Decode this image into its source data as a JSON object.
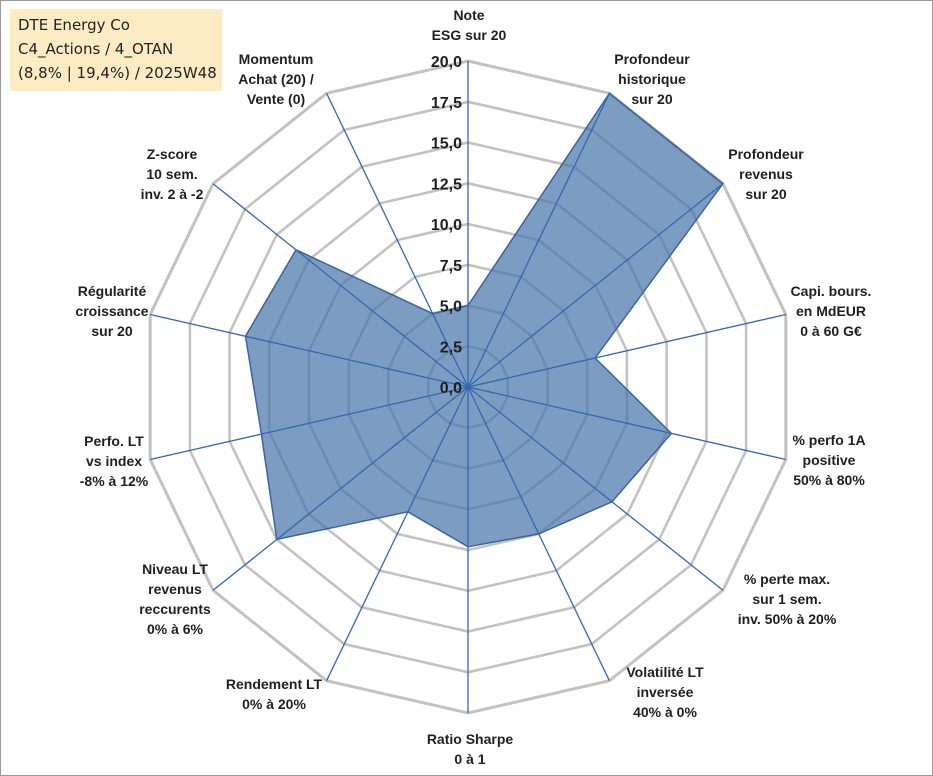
{
  "info": {
    "line1": "DTE Energy Co",
    "line2": "C4_Actions / 4_OTAN",
    "line3": "(8,8% | 19,4%) / 2025W48"
  },
  "chart_data": {
    "type": "radar",
    "title": "",
    "rmin": 0,
    "rmax": 20,
    "tick_step": 2.5,
    "tick_labels": [
      "0,0",
      "2,5",
      "5,0",
      "7,5",
      "10,0",
      "12,5",
      "15,0",
      "17,5",
      "20,0"
    ],
    "categories": [
      {
        "id": "note-esg",
        "label": [
          "Note",
          "ESG sur 20"
        ]
      },
      {
        "id": "profondeur-historique",
        "label": [
          "Profondeur",
          "historique",
          "sur 20"
        ]
      },
      {
        "id": "profondeur-revenus",
        "label": [
          "Profondeur",
          "revenus",
          "sur 20"
        ]
      },
      {
        "id": "capi-bours",
        "label": [
          "Capi. bours.",
          "en MdEUR",
          "0 à 60 G€"
        ]
      },
      {
        "id": "perfo-1a",
        "label": [
          "% perfo 1A",
          "positive",
          "50% à 80%"
        ]
      },
      {
        "id": "perte-max",
        "label": [
          "% perte max.",
          "sur 1 sem.",
          "inv. 50% à 20%"
        ]
      },
      {
        "id": "volatilite-lt",
        "label": [
          "Volatilité LT",
          "inversée",
          "40% à 0%"
        ]
      },
      {
        "id": "ratio-sharpe",
        "label": [
          "Ratio Sharpe",
          "0 à 1"
        ]
      },
      {
        "id": "rendement-lt",
        "label": [
          "Rendement LT",
          "0% à 20%"
        ]
      },
      {
        "id": "niveau-lt",
        "label": [
          "Niveau LT",
          "revenus",
          "reccurents",
          "0% à 6%"
        ]
      },
      {
        "id": "perfo-lt",
        "label": [
          "Perfo. LT",
          "vs index",
          "-8% à 12%"
        ]
      },
      {
        "id": "regularite",
        "label": [
          "Régularité",
          "croissance",
          "sur 20"
        ]
      },
      {
        "id": "z-score",
        "label": [
          "Z-score",
          "10 sem.",
          "inv. 2 à -2"
        ]
      },
      {
        "id": "momentum",
        "label": [
          "Momentum",
          "Achat (20) /",
          "Vente (0)"
        ]
      }
    ],
    "series": [
      {
        "name": "DTE Energy Co",
        "values": [
          5.0,
          20.0,
          20.0,
          8.0,
          12.8,
          11.3,
          10.0,
          9.8,
          8.5,
          15.0,
          13.0,
          14.0,
          13.5,
          5.0
        ]
      }
    ],
    "colors": {
      "fill": "#4a76ab",
      "stroke": "#3b64a0",
      "grid": "#c2c2c2",
      "spoke": "#3567b0"
    }
  }
}
